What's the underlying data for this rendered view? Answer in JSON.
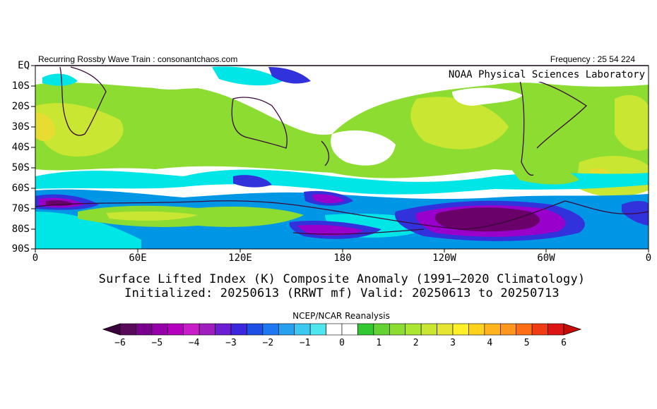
{
  "header": {
    "left": "Recurring Rossby Wave Train : consonantchaos.com",
    "right": "Frequency : 25 54 224"
  },
  "overlay_label": "NOAA Physical Sciences Laboratory",
  "map": {
    "lat_labels": [
      "EQ",
      "10S",
      "20S",
      "30S",
      "40S",
      "50S",
      "60S",
      "70S",
      "80S",
      "90S"
    ],
    "lon_labels": [
      "0",
      "60E",
      "120E",
      "180",
      "120W",
      "60W",
      "0"
    ],
    "colors": {
      "ocean_white": "#ffffff",
      "coast": "#3a0a3a",
      "deep_purple": "#6a006a",
      "purple": "#9900cc",
      "blue": "#3232dc",
      "light_blue": "#0096e6",
      "cyan": "#00e6e6",
      "green": "#32c832",
      "lime": "#8cdc32",
      "yellow_green": "#c8e632",
      "yellow": "#e6dc32",
      "orange": "#f0b41e"
    }
  },
  "title": {
    "line1": "Surface Lifted Index (K) Composite Anomaly (1991–2020 Climatology)",
    "line2": "Initialized: 20250613 (RRWT mf) Valid: 20250613 to 20250713"
  },
  "colorbar": {
    "title": "NCEP/NCAR Reanalysis",
    "tick_labels": [
      "−6",
      "−5",
      "−4",
      "−3",
      "−2",
      "−1",
      "0",
      "1",
      "2",
      "3",
      "4",
      "5",
      "6"
    ],
    "colors": [
      "#5a0a5a",
      "#78008c",
      "#9600aa",
      "#b400be",
      "#c81ec8",
      "#a01ebe",
      "#6e1ed2",
      "#3c28dc",
      "#1e50e6",
      "#1e78f0",
      "#28a0f0",
      "#3cc8f0",
      "#50e6f0",
      "#ffffff",
      "#ffffff",
      "#32c832",
      "#64d232",
      "#8cdc32",
      "#aae632",
      "#c8e632",
      "#e6e632",
      "#fff028",
      "#ffd21e",
      "#ffb41e",
      "#ff961e",
      "#ff6e14",
      "#f03c14",
      "#dc1414"
    ]
  }
}
